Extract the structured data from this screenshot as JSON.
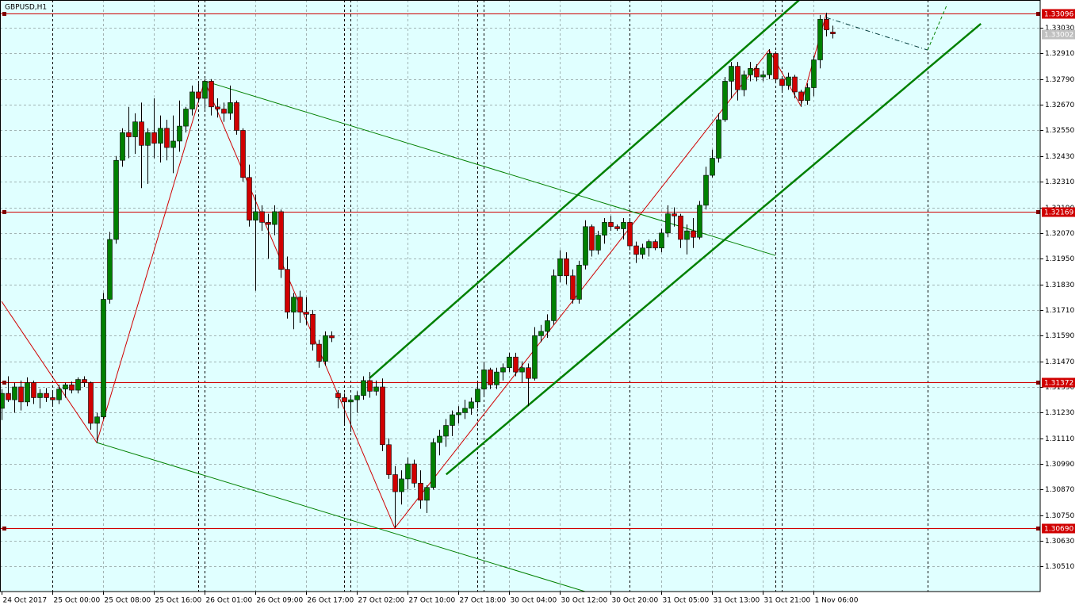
{
  "chart_data": {
    "type": "candlestick",
    "title": "GBPUSD,H1",
    "background": "#e0ffff",
    "bull_color": "#008000",
    "bear_color": "#d00000",
    "grid": true,
    "xlim": [
      -0.25,
      163.75
    ],
    "xticks": [
      {
        "value": 0,
        "label": "24 Oct 2017"
      },
      {
        "value": 8,
        "label": "25 Oct 00:00"
      },
      {
        "value": 16,
        "label": "25 Oct 08:00"
      },
      {
        "value": 24,
        "label": "25 Oct 16:00"
      },
      {
        "value": 32,
        "label": "26 Oct 01:00"
      },
      {
        "value": 40,
        "label": "26 Oct 09:00"
      },
      {
        "value": 48,
        "label": "26 Oct 17:00"
      },
      {
        "value": 56,
        "label": "27 Oct 02:00"
      },
      {
        "value": 64,
        "label": "27 Oct 10:00"
      },
      {
        "value": 72,
        "label": "27 Oct 18:00"
      },
      {
        "value": 80,
        "label": "30 Oct 04:00"
      },
      {
        "value": 88,
        "label": "30 Oct 12:00"
      },
      {
        "value": 96,
        "label": "30 Oct 20:00"
      },
      {
        "value": 104,
        "label": "31 Oct 05:00"
      },
      {
        "value": 112,
        "label": "31 Oct 13:00"
      },
      {
        "value": 120,
        "label": "31 Oct 21:00"
      },
      {
        "value": 128,
        "label": "1 Nov 06:00"
      }
    ],
    "period_separators": [
      8,
      31,
      32,
      54,
      55,
      75,
      76,
      99,
      122,
      123,
      146
    ],
    "ylim": [
      1.30393,
      1.3316
    ],
    "yticks": [
      {
        "value": 1.3051,
        "label": "1.30510"
      },
      {
        "value": 1.3063,
        "label": "1.30630"
      },
      {
        "value": 1.3075,
        "label": "1.30750"
      },
      {
        "value": 1.3087,
        "label": "1.30870"
      },
      {
        "value": 1.3099,
        "label": "1.30990"
      },
      {
        "value": 1.3111,
        "label": "1.31110"
      },
      {
        "value": 1.3123,
        "label": "1.31230"
      },
      {
        "value": 1.3135,
        "label": "1.31350"
      },
      {
        "value": 1.3147,
        "label": "1.31470"
      },
      {
        "value": 1.3159,
        "label": "1.31590"
      },
      {
        "value": 1.3171,
        "label": "1.31710"
      },
      {
        "value": 1.3183,
        "label": "1.31830"
      },
      {
        "value": 1.3195,
        "label": "1.31950"
      },
      {
        "value": 1.3207,
        "label": "1.32070"
      },
      {
        "value": 1.3219,
        "label": "1.32190"
      },
      {
        "value": 1.3231,
        "label": "1.32310"
      },
      {
        "value": 1.3243,
        "label": "1.32430"
      },
      {
        "value": 1.3255,
        "label": "1.32550"
      },
      {
        "value": 1.3267,
        "label": "1.32670"
      },
      {
        "value": 1.3279,
        "label": "1.32790"
      },
      {
        "value": 1.3291,
        "label": "1.32910"
      },
      {
        "value": 1.3303,
        "label": "1.33030"
      }
    ],
    "price_lines": [
      {
        "value": 1.33096,
        "label": "1.33096"
      },
      {
        "value": 1.32169,
        "label": "1.32169"
      },
      {
        "value": 1.31372,
        "label": "1.31372"
      },
      {
        "value": 1.3069,
        "label": "1.30690"
      }
    ],
    "price_line_color": "#d00000",
    "current_price": {
      "value": 1.33002,
      "label": "1.33002"
    },
    "open": [
      1.3125,
      1.3132,
      1.3129,
      1.3135,
      1.3128,
      1.3137,
      1.313,
      1.3132,
      1.313,
      1.3129,
      1.3134,
      1.3136,
      1.31335,
      1.31385,
      1.3137,
      1.3118,
      1.3121,
      1.3176,
      1.3204,
      1.3241,
      1.3254,
      1.3252,
      1.3259,
      1.3248,
      1.3254,
      1.3249,
      1.3256,
      1.3247,
      1.325,
      1.3257,
      1.3265,
      1.3273,
      1.327,
      1.3278,
      1.3266,
      1.3265,
      1.3263,
      1.3268,
      1.3255,
      1.3233,
      1.3213,
      1.3217,
      1.3212,
      1.3211,
      1.3217,
      1.319,
      1.317,
      1.3177,
      1.317,
      1.3169,
      1.3155,
      1.3147,
      1.3159,
      1.3132,
      1.313,
      1.3128,
      1.3129,
      1.3131,
      1.3138,
      1.3133,
      1.3135,
      1.3108,
      1.3094,
      1.3086,
      1.3092,
      1.3099,
      1.309,
      1.3082,
      1.3088,
      1.3109,
      1.3112,
      1.3117,
      1.3122,
      1.3123,
      1.3125,
      1.3128,
      1.3134,
      1.3143,
      1.3136,
      1.3142,
      1.3144,
      1.3149,
      1.3142,
      1.3144,
      1.3139,
      1.3159,
      1.3161,
      1.3166,
      1.3187,
      1.3195,
      1.3187,
      1.3176,
      1.3192,
      1.321,
      1.3199,
      1.3206,
      1.3212,
      1.321,
      1.3209,
      1.3212,
      1.3201,
      1.3197,
      1.32,
      1.3203,
      1.32,
      1.3207,
      1.3216,
      1.3215,
      1.3204,
      1.3208,
      1.3205,
      1.322,
      1.3234,
      1.3242,
      1.326,
      1.3278,
      1.3285,
      1.3274,
      1.3281,
      1.3284,
      1.328,
      1.3281,
      1.3291,
      1.3279,
      1.3276,
      1.328,
      1.3273,
      1.3269,
      1.3275,
      1.3288,
      1.3307,
      1.3301
    ],
    "high": [
      1.3134,
      1.314,
      1.3137,
      1.3138,
      1.31395,
      1.3138,
      1.3134,
      1.31345,
      1.3133,
      1.3136,
      1.3137,
      1.31375,
      1.31395,
      1.314,
      1.31375,
      1.3123,
      1.3179,
      1.32075,
      1.3243,
      1.3256,
      1.3266,
      1.3263,
      1.3268,
      1.3256,
      1.327,
      1.3262,
      1.326,
      1.3262,
      1.3269,
      1.3266,
      1.3276,
      1.3277,
      1.3279,
      1.3279,
      1.327,
      1.3268,
      1.3276,
      1.3269,
      1.3256,
      1.3239,
      1.3225,
      1.322,
      1.3216,
      1.322,
      1.3218,
      1.3196,
      1.3179,
      1.318,
      1.3177,
      1.3171,
      1.3157,
      1.3161,
      1.3161,
      1.31335,
      1.3132,
      1.3131,
      1.3133,
      1.314,
      1.3142,
      1.3138,
      1.3139,
      1.3111,
      1.3098,
      1.3096,
      1.3102,
      1.3101,
      1.3096,
      1.3089,
      1.3111,
      1.3115,
      1.312,
      1.3124,
      1.3126,
      1.3129,
      1.313,
      1.3137,
      1.3146,
      1.3144,
      1.3144,
      1.3146,
      1.3151,
      1.3151,
      1.3147,
      1.3146,
      1.3163,
      1.3164,
      1.3169,
      1.319,
      1.3199,
      1.3198,
      1.319,
      1.3194,
      1.3213,
      1.3211,
      1.3208,
      1.3214,
      1.3215,
      1.3211,
      1.3214,
      1.3214,
      1.3203,
      1.3202,
      1.3204,
      1.3204,
      1.3209,
      1.322,
      1.3219,
      1.3216,
      1.3211,
      1.3214,
      1.3222,
      1.3238,
      1.3246,
      1.3263,
      1.328,
      1.3287,
      1.3287,
      1.3283,
      1.3287,
      1.3286,
      1.3283,
      1.3293,
      1.3292,
      1.328,
      1.3282,
      1.3281,
      1.3274,
      1.3277,
      1.329,
      1.3309,
      1.331,
      1.3304
    ],
    "low": [
      1.31195,
      1.3128,
      1.3123,
      1.3124,
      1.3126,
      1.3127,
      1.3125,
      1.3128,
      1.3126,
      1.3127,
      1.313,
      1.3132,
      1.3132,
      1.3135,
      1.3115,
      1.3109,
      1.312,
      1.3174,
      1.3202,
      1.3238,
      1.3242,
      1.3244,
      1.3228,
      1.323,
      1.3242,
      1.324,
      1.3241,
      1.3235,
      1.3245,
      1.3254,
      1.3262,
      1.3268,
      1.3265,
      1.3262,
      1.3261,
      1.3259,
      1.326,
      1.3253,
      1.3231,
      1.321,
      1.318,
      1.3208,
      1.3195,
      1.3206,
      1.3186,
      1.3167,
      1.3162,
      1.3165,
      1.3164,
      1.3152,
      1.3144,
      1.3145,
      1.3156,
      1.3125,
      1.3118,
      1.3114,
      1.3123,
      1.3129,
      1.313,
      1.3131,
      1.3105,
      1.3092,
      1.3069,
      1.308,
      1.3087,
      1.3088,
      1.3078,
      1.3076,
      1.3087,
      1.3103,
      1.3107,
      1.3112,
      1.3118,
      1.312,
      1.3122,
      1.3125,
      1.3131,
      1.3134,
      1.3134,
      1.3138,
      1.3142,
      1.314,
      1.3137,
      1.3126,
      1.3138,
      1.3156,
      1.3158,
      1.3164,
      1.3184,
      1.3183,
      1.3174,
      1.3174,
      1.319,
      1.3196,
      1.3197,
      1.3202,
      1.3208,
      1.3208,
      1.3204,
      1.3199,
      1.3193,
      1.3195,
      1.3196,
      1.3199,
      1.3198,
      1.3205,
      1.321,
      1.32,
      1.3197,
      1.32,
      1.3204,
      1.3218,
      1.3233,
      1.324,
      1.3259,
      1.327,
      1.3269,
      1.3271,
      1.3278,
      1.3278,
      1.3278,
      1.3279,
      1.3277,
      1.3273,
      1.3274,
      1.327,
      1.3266,
      1.3267,
      1.3271,
      1.3284,
      1.3299,
      1.3298
    ],
    "close": [
      1.3132,
      1.3129,
      1.3135,
      1.3128,
      1.3137,
      1.313,
      1.3132,
      1.313,
      1.3129,
      1.3134,
      1.3136,
      1.31335,
      1.31385,
      1.3137,
      1.3118,
      1.3121,
      1.3176,
      1.3204,
      1.3241,
      1.3254,
      1.3252,
      1.3259,
      1.3248,
      1.3254,
      1.3249,
      1.3256,
      1.3247,
      1.325,
      1.3257,
      1.3265,
      1.3273,
      1.327,
      1.3278,
      1.3266,
      1.3265,
      1.3263,
      1.3268,
      1.3255,
      1.3233,
      1.3213,
      1.3217,
      1.3212,
      1.3211,
      1.3217,
      1.319,
      1.317,
      1.3177,
      1.317,
      1.3169,
      1.3155,
      1.3147,
      1.3159,
      1.3158,
      1.313,
      1.3128,
      1.3129,
      1.3131,
      1.3138,
      1.3133,
      1.3135,
      1.3108,
      1.3094,
      1.3086,
      1.3092,
      1.3099,
      1.309,
      1.3082,
      1.3088,
      1.3109,
      1.3112,
      1.3117,
      1.3122,
      1.3123,
      1.3125,
      1.3128,
      1.3134,
      1.3143,
      1.3136,
      1.3142,
      1.3144,
      1.3149,
      1.3142,
      1.3144,
      1.3139,
      1.3159,
      1.3161,
      1.3166,
      1.3187,
      1.3195,
      1.3187,
      1.3176,
      1.3192,
      1.321,
      1.3199,
      1.3206,
      1.3212,
      1.321,
      1.3209,
      1.3212,
      1.3201,
      1.3197,
      1.32,
      1.3203,
      1.32,
      1.3207,
      1.3216,
      1.3215,
      1.3204,
      1.3208,
      1.3205,
      1.322,
      1.3234,
      1.3242,
      1.326,
      1.3278,
      1.3285,
      1.3274,
      1.3281,
      1.3284,
      1.328,
      1.3281,
      1.3291,
      1.3279,
      1.3276,
      1.328,
      1.3273,
      1.3269,
      1.3275,
      1.3288,
      1.3307,
      1.3302,
      1.33002
    ],
    "trend_lines": [
      {
        "color": "#d00000",
        "style": "thin",
        "x": [
          0,
          15,
          32,
          62,
          121,
          126,
          130
        ],
        "y": [
          1.3175,
          1.3109,
          1.32781,
          1.3069,
          1.32926,
          1.32666,
          1.33093
        ]
      },
      {
        "color": "#008000",
        "style": "thick",
        "x": [
          58,
          125.75
        ],
        "y": [
          1.31391,
          1.3316
        ]
      },
      {
        "color": "#008000",
        "style": "thick",
        "x": [
          70.1,
          154.4
        ],
        "y": [
          1.30941,
          1.33049
        ]
      },
      {
        "color": "#008000",
        "style": "thin",
        "x": [
          32,
          122
        ],
        "y": [
          1.32781,
          1.31965
        ]
      },
      {
        "color": "#008000",
        "style": "thin",
        "x": [
          15,
          92
        ],
        "y": [
          1.3109,
          1.30393
        ]
      },
      {
        "color": "#003c3c",
        "style": "dashdot",
        "x": [
          130,
          146
        ],
        "y": [
          1.33078,
          1.32926
        ]
      },
      {
        "color": "#008000",
        "style": "dashed",
        "x": [
          146,
          149.1
        ],
        "y": [
          1.32926,
          1.33141
        ]
      }
    ]
  }
}
